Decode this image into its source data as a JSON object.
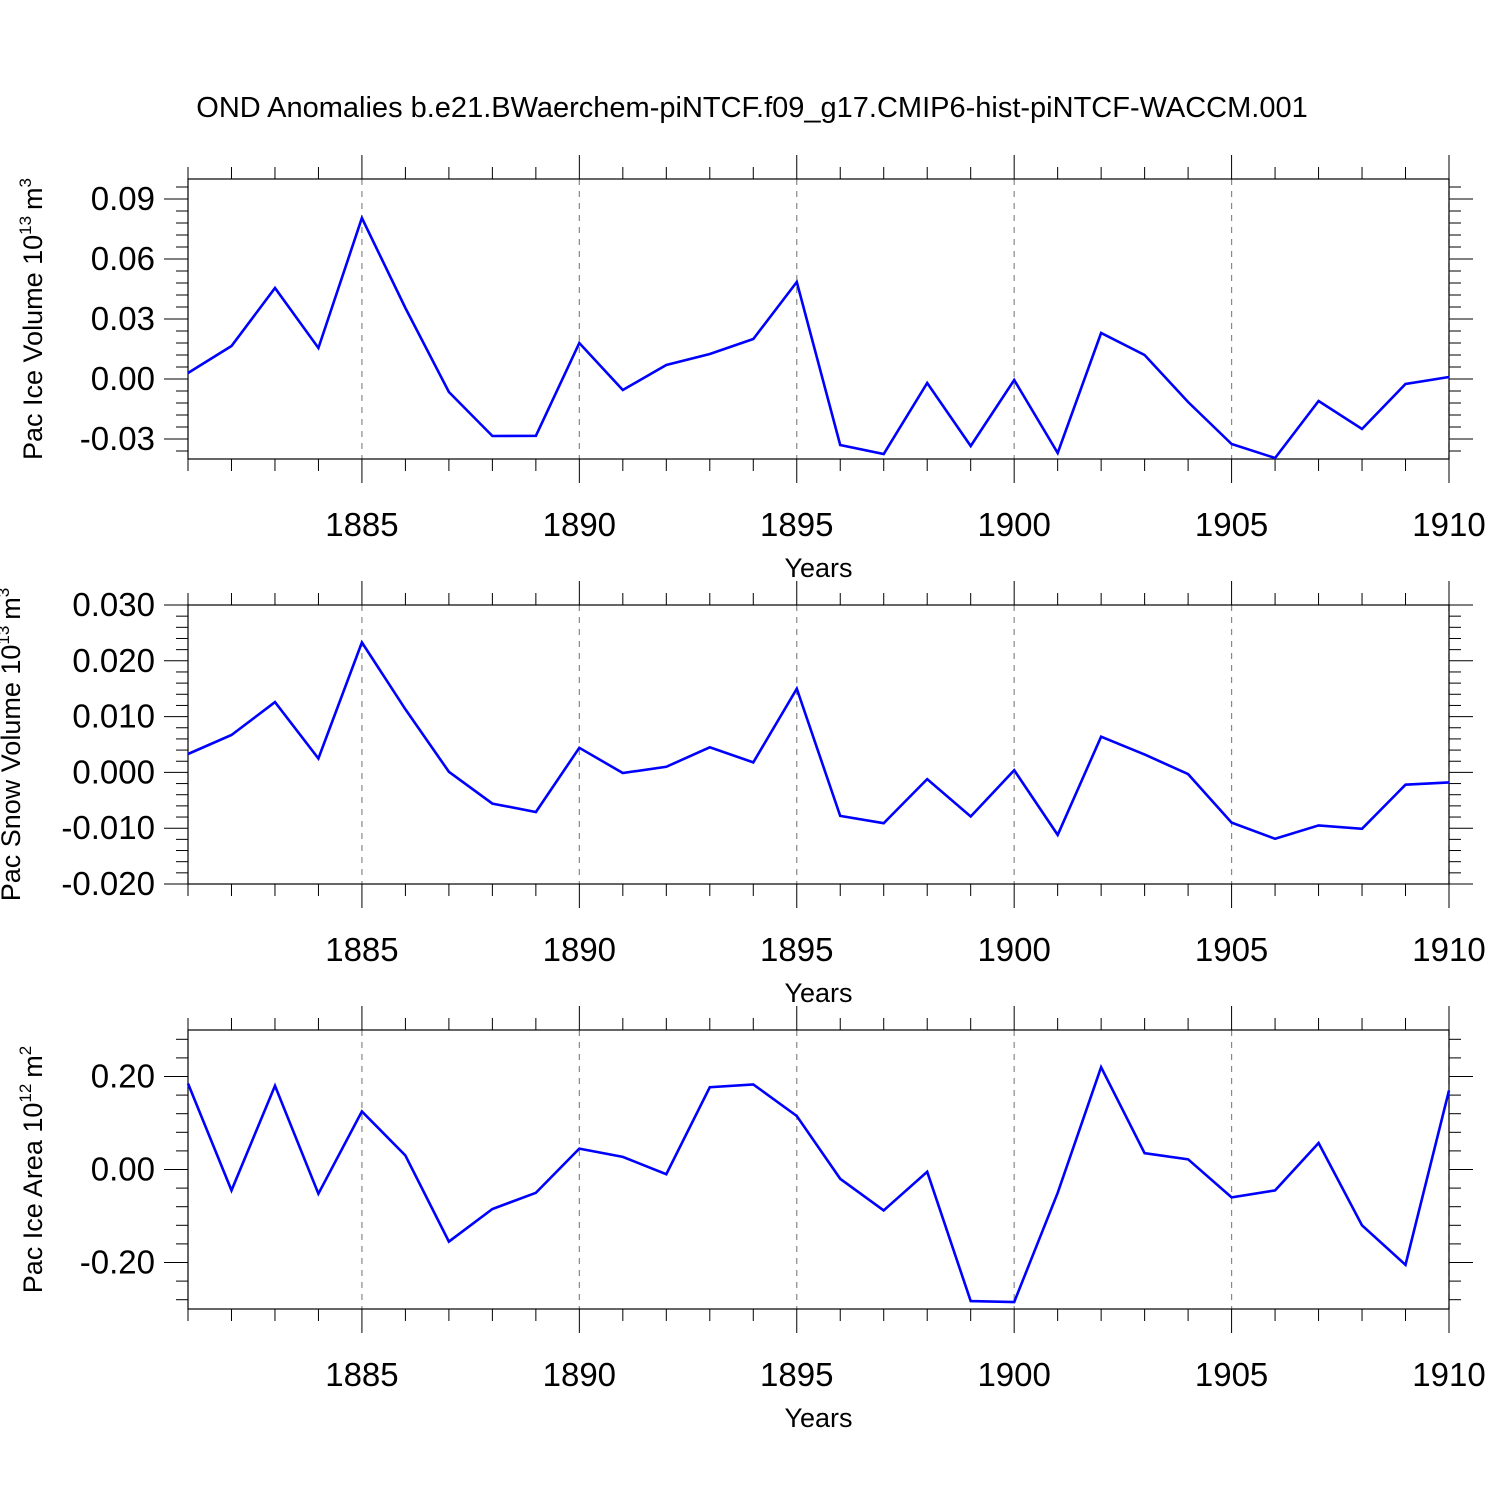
{
  "chart_data": {
    "type": "line",
    "title": "OND Anomalies b.e21.BWaerchem-piNTCF.f09_g17.CMIP6-hist-piNTCF-WACCM.001",
    "x": [
      1881,
      1882,
      1883,
      1884,
      1885,
      1886,
      1887,
      1888,
      1889,
      1890,
      1891,
      1892,
      1893,
      1894,
      1895,
      1896,
      1897,
      1898,
      1899,
      1900,
      1901,
      1902,
      1903,
      1904,
      1905,
      1906,
      1907,
      1908,
      1909,
      1910
    ],
    "xlim": [
      1881,
      1910
    ],
    "xticks": [
      "1885",
      "1890",
      "1895",
      "1900",
      "1905",
      "1910"
    ],
    "line_color": "#0000ff",
    "panels": [
      {
        "id": "ice-volume",
        "ylabel": "Pac Ice Volume 10",
        "ylabel_exp": "13",
        "ylabel_unit": "m",
        "ylabel_unit_exp": "3",
        "xlabel": "Years",
        "ylim": [
          -0.04,
          0.1
        ],
        "yticks": [
          -0.03,
          0.0,
          0.03,
          0.06,
          0.09
        ],
        "ytick_labels": [
          "-0.03",
          "0.00",
          "0.03",
          "0.06",
          "0.09"
        ],
        "values": [
          0.003,
          0.0165,
          0.0455,
          0.0155,
          0.0805,
          0.0355,
          -0.0065,
          -0.0285,
          -0.0284,
          0.018,
          -0.0055,
          0.007,
          0.0125,
          0.02,
          0.0485,
          -0.033,
          -0.0375,
          -0.002,
          -0.0335,
          -0.0005,
          -0.037,
          0.023,
          0.012,
          -0.0115,
          -0.0325,
          -0.0395,
          -0.011,
          -0.025,
          -0.0025,
          0.001
        ]
      },
      {
        "id": "snow-volume",
        "ylabel": "Pac Snow Volume 10",
        "ylabel_exp": "13",
        "ylabel_unit": "m",
        "ylabel_unit_exp": "3",
        "xlabel": "Years",
        "ylim": [
          -0.02,
          0.03
        ],
        "yticks": [
          -0.02,
          -0.01,
          0.0,
          0.01,
          0.02,
          0.03
        ],
        "ytick_labels": [
          "-0.020",
          "-0.010",
          "0.000",
          "0.010",
          "0.020",
          "0.030"
        ],
        "values": [
          0.0033,
          0.0067,
          0.0126,
          0.0025,
          0.0233,
          0.0113,
          0.0001,
          -0.0056,
          -0.0071,
          0.0044,
          -0.0001,
          0.001,
          0.0045,
          0.0018,
          0.015,
          -0.0078,
          -0.0091,
          -0.0012,
          -0.0079,
          0.0004,
          -0.0112,
          0.0064,
          0.0032,
          -0.0003,
          -0.009,
          -0.0119,
          -0.0095,
          -0.0101,
          -0.0022,
          -0.0018
        ]
      },
      {
        "id": "ice-area",
        "ylabel": "Pac Ice Area 10",
        "ylabel_exp": "12",
        "ylabel_unit": "m",
        "ylabel_unit_exp": "2",
        "xlabel": "Years",
        "ylim": [
          -0.3,
          0.3
        ],
        "yticks": [
          -0.2,
          0.0,
          0.2
        ],
        "ytick_labels": [
          "-0.20",
          "0.00",
          "0.20"
        ],
        "values": [
          0.185,
          -0.045,
          0.18,
          -0.052,
          0.125,
          0.03,
          -0.155,
          -0.085,
          -0.05,
          0.045,
          0.027,
          -0.01,
          0.177,
          0.183,
          0.115,
          -0.02,
          -0.088,
          -0.005,
          -0.283,
          -0.285,
          -0.05,
          0.22,
          0.035,
          0.022,
          -0.06,
          -0.045,
          0.057,
          -0.12,
          -0.205,
          0.17
        ]
      }
    ]
  }
}
